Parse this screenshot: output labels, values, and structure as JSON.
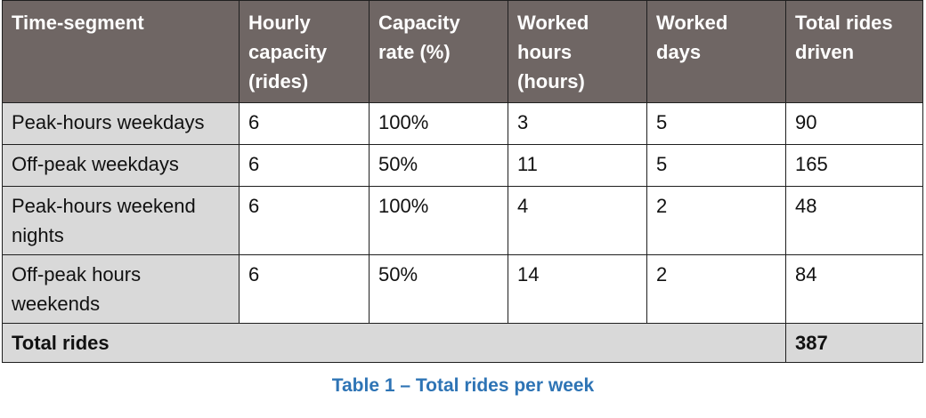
{
  "table": {
    "headers": [
      "Time-segment",
      "Hourly capacity (rides)",
      "Capacity rate (%)",
      "Worked hours (hours)",
      "Worked days",
      "Total rides driven"
    ],
    "rows": [
      [
        "Peak-hours weekdays",
        "6",
        "100%",
        "3",
        "5",
        "90"
      ],
      [
        "Off-peak weekdays",
        "6",
        "50%",
        "11",
        "5",
        "165"
      ],
      [
        "Peak-hours weekend nights",
        "6",
        "100%",
        "4",
        "2",
        "48"
      ],
      [
        "Off-peak hours weekends",
        "6",
        "50%",
        "14",
        "2",
        "84"
      ]
    ],
    "total": {
      "label": "Total rides",
      "value": "387"
    }
  },
  "caption": "Table 1 – Total rides per week",
  "colors": {
    "header_bg": "#6f6664",
    "label_bg": "#d9d9d9",
    "caption": "#2e74b5"
  }
}
